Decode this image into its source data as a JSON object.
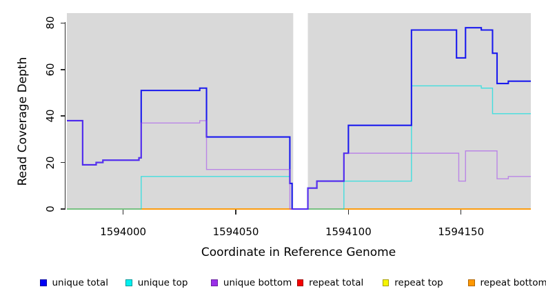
{
  "figure": {
    "background": "#ffffff",
    "plot_background": "#d9d9d9",
    "gap_band": {
      "x_start": 1594075.5,
      "x_end": 1594082,
      "color": "#ffffff"
    }
  },
  "axes": {
    "y": {
      "label": "Read Coverage Depth",
      "ticks": [
        0,
        20,
        40,
        60,
        80
      ]
    },
    "x": {
      "label": "Coordinate in Reference Genome",
      "ticks": [
        1594000,
        1594050,
        1594100,
        1594150
      ]
    }
  },
  "chart_data": {
    "type": "line",
    "subtype": "step",
    "title": "",
    "xlabel": "Coordinate in Reference Genome",
    "ylabel": "Read Coverage Depth",
    "xlim": [
      1593975,
      1594181
    ],
    "ylim": [
      0,
      84
    ],
    "grid": false,
    "legend_position": "bottom",
    "gap_region": [
      1594075,
      1594082
    ],
    "series": [
      {
        "name": "unique total",
        "color": "#1a1aee",
        "steps": [
          [
            1593975,
            38
          ],
          [
            1593982,
            19
          ],
          [
            1593988,
            20
          ],
          [
            1593991,
            21
          ],
          [
            1594007,
            22
          ],
          [
            1594008,
            51
          ],
          [
            1594034,
            52
          ],
          [
            1594037,
            31
          ],
          [
            1594074,
            11
          ],
          [
            1594075,
            0
          ],
          [
            1594082,
            9
          ],
          [
            1594086,
            12
          ],
          [
            1594098,
            24
          ],
          [
            1594100,
            36
          ],
          [
            1594128,
            77
          ],
          [
            1594148,
            65
          ],
          [
            1594152,
            78
          ],
          [
            1594159,
            77
          ],
          [
            1594164,
            67
          ],
          [
            1594166,
            54
          ],
          [
            1594171,
            55
          ],
          [
            1594181,
            55
          ]
        ]
      },
      {
        "name": "unique top",
        "color": "#00e0e0",
        "steps": [
          [
            1593975,
            0
          ],
          [
            1594008,
            14
          ],
          [
            1594074,
            11
          ],
          [
            1594075,
            0
          ],
          [
            1594098,
            12
          ],
          [
            1594128,
            53
          ],
          [
            1594159,
            52
          ],
          [
            1594164,
            41
          ],
          [
            1594181,
            41
          ]
        ]
      },
      {
        "name": "unique bottom",
        "color": "#a040f0",
        "steps": [
          [
            1593975,
            38
          ],
          [
            1593982,
            19
          ],
          [
            1593988,
            20
          ],
          [
            1593991,
            21
          ],
          [
            1594007,
            22
          ],
          [
            1594008,
            37
          ],
          [
            1594034,
            38
          ],
          [
            1594037,
            17
          ],
          [
            1594074,
            0
          ],
          [
            1594082,
            9
          ],
          [
            1594086,
            12
          ],
          [
            1594098,
            24
          ],
          [
            1594149,
            12
          ],
          [
            1594152,
            25
          ],
          [
            1594166,
            13
          ],
          [
            1594171,
            14
          ],
          [
            1594181,
            14
          ]
        ]
      },
      {
        "name": "repeat total",
        "color": "#e00000",
        "steps": [
          [
            1593975,
            0
          ],
          [
            1594181,
            0
          ]
        ]
      },
      {
        "name": "repeat top",
        "color": "#f5f500",
        "steps": [
          [
            1593975,
            0
          ],
          [
            1594181,
            0
          ]
        ]
      },
      {
        "name": "repeat bottom",
        "color": "#ff9800",
        "steps": [
          [
            1593975,
            0
          ],
          [
            1594181,
            0
          ]
        ]
      }
    ]
  },
  "legend": {
    "items": [
      {
        "label": "unique total",
        "color": "#0000f5",
        "border": "#0000a0"
      },
      {
        "label": "unique top",
        "color": "#00f0f0",
        "border": "#009898"
      },
      {
        "label": "unique bottom",
        "color": "#9a30e8",
        "border": "#6a20a0"
      },
      {
        "label": "repeat total",
        "color": "#f50000",
        "border": "#a00000"
      },
      {
        "label": "repeat top",
        "color": "#f5f500",
        "border": "#a8a000"
      },
      {
        "label": "repeat bottom",
        "color": "#ff9800",
        "border": "#b06500"
      }
    ]
  }
}
